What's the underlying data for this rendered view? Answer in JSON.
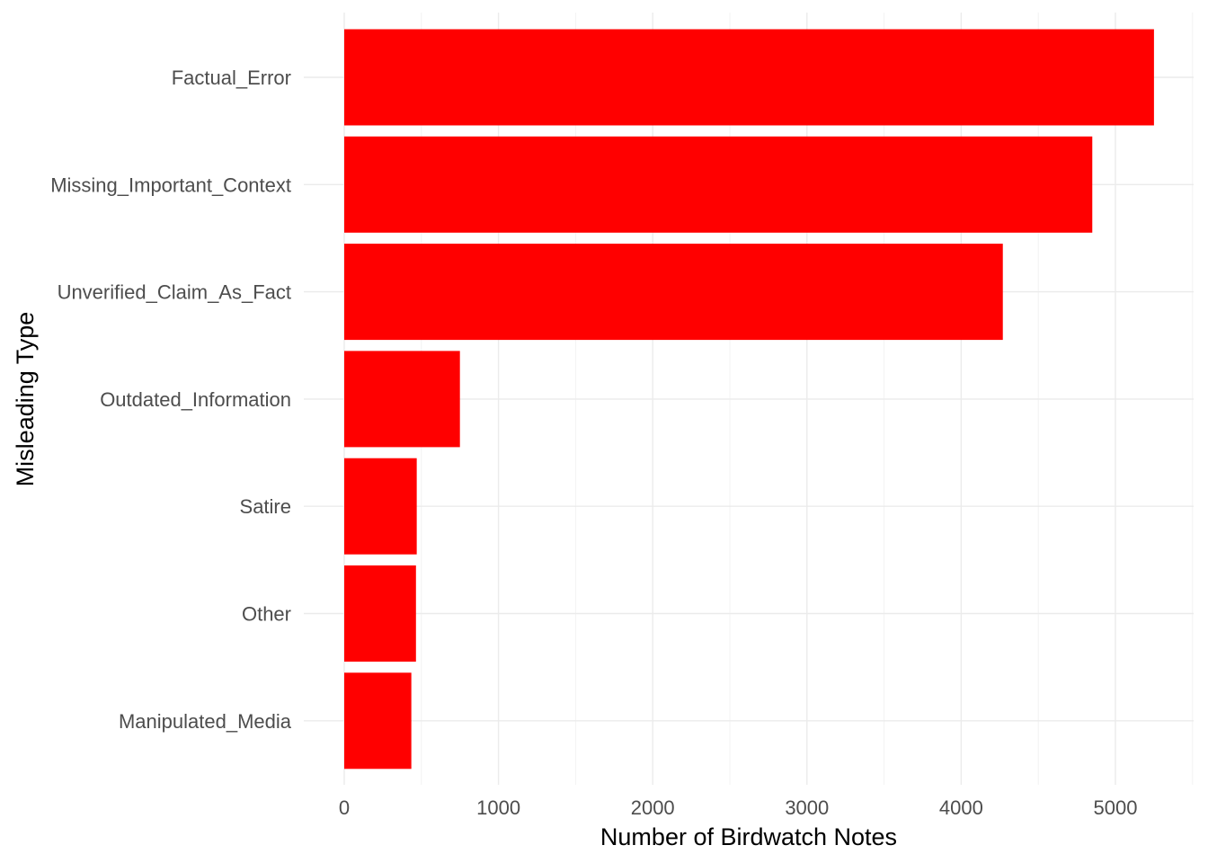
{
  "chart_data": {
    "type": "bar",
    "orientation": "horizontal",
    "title": "",
    "xlabel": "Number of Birdwatch Notes",
    "ylabel": "Misleading Type",
    "categories": [
      "Factual_Error",
      "Missing_Important_Context",
      "Unverified_Claim_As_Fact",
      "Outdated_Information",
      "Satire",
      "Other",
      "Manipulated_Media"
    ],
    "values": [
      5250,
      4850,
      4270,
      750,
      470,
      465,
      435
    ],
    "xlim": [
      0,
      5500
    ],
    "xticks": [
      0,
      1000,
      2000,
      3000,
      4000,
      5000
    ],
    "xtick_labels": [
      "0",
      "1000",
      "2000",
      "3000",
      "4000",
      "5000"
    ],
    "bar_color": "#ff0000",
    "grid": true,
    "legend": "none"
  }
}
